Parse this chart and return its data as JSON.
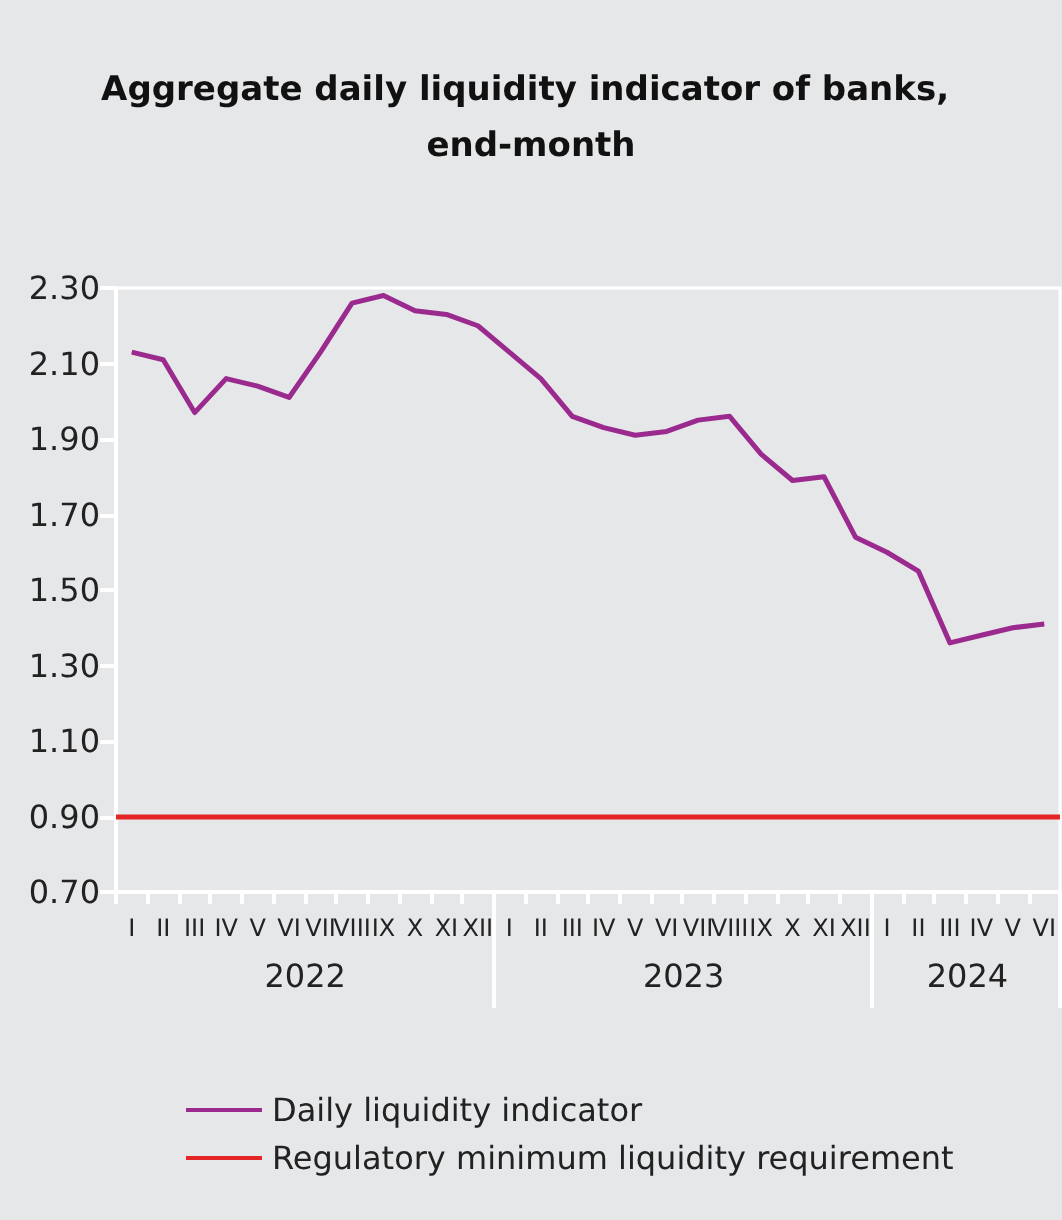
{
  "chart_data": {
    "type": "line",
    "title": "Aggregate daily liquidity indicator of banks, end-month",
    "categories": [
      "I",
      "II",
      "III",
      "IV",
      "V",
      "VI",
      "VII",
      "VIII",
      "IX",
      "X",
      "XI",
      "XII",
      "I",
      "II",
      "III",
      "IV",
      "V",
      "VI",
      "VII",
      "VIII",
      "IX",
      "X",
      "XI",
      "XII",
      "I",
      "II",
      "III",
      "IV",
      "V",
      "VI"
    ],
    "series": [
      {
        "name": "Daily liquidity indicator",
        "color": "#9b2a8f",
        "values": [
          2.13,
          2.11,
          1.97,
          2.06,
          2.04,
          2.01,
          2.13,
          2.26,
          2.28,
          2.24,
          2.23,
          2.2,
          2.13,
          2.06,
          1.96,
          1.93,
          1.91,
          1.92,
          1.95,
          1.96,
          1.86,
          1.79,
          1.8,
          1.64,
          1.6,
          1.55,
          1.36,
          1.38,
          1.4,
          1.41
        ]
      }
    ],
    "ref_lines": [
      {
        "axis": "y",
        "value": 0.9,
        "label": "Regulatory minimum liquidity requirement",
        "color": "#e32526"
      }
    ],
    "annotations": [
      "2022",
      "2023",
      "2024"
    ],
    "ylim": [
      0.7,
      2.3
    ],
    "yticks": [
      {
        "value": 0.7,
        "label": "0.70"
      },
      {
        "value": 0.9,
        "label": "0.90"
      },
      {
        "value": 1.1,
        "label": "1.10"
      },
      {
        "value": 1.3,
        "label": "1.30"
      },
      {
        "value": 1.5,
        "label": "1.50"
      },
      {
        "value": 1.7,
        "label": "1.70"
      },
      {
        "value": 1.9,
        "label": "1.90"
      },
      {
        "value": 2.1,
        "label": "2.10"
      },
      {
        "value": 2.3,
        "label": "2.30"
      }
    ],
    "grid": false,
    "legend": "bottom",
    "marker": "none",
    "line_style": "solid"
  }
}
